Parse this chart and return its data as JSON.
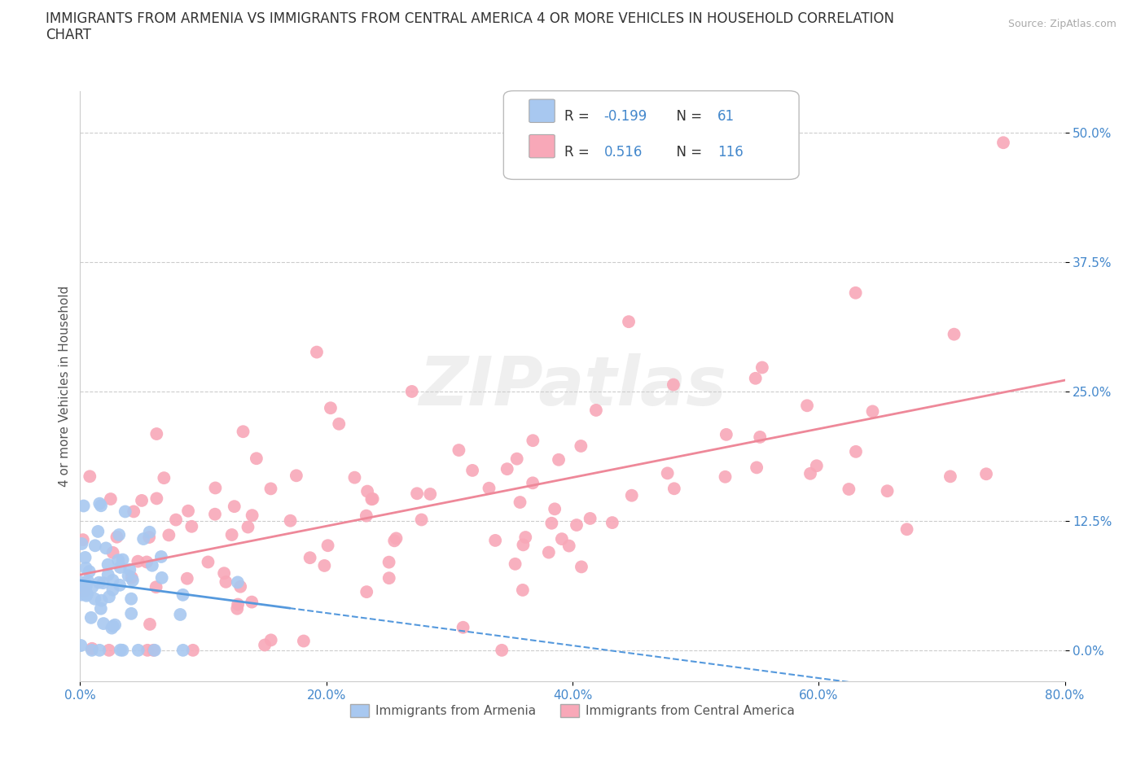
{
  "title_line1": "IMMIGRANTS FROM ARMENIA VS IMMIGRANTS FROM CENTRAL AMERICA 4 OR MORE VEHICLES IN HOUSEHOLD CORRELATION",
  "title_line2": "CHART",
  "source": "Source: ZipAtlas.com",
  "ylabel": "4 or more Vehicles in Household",
  "xlim": [
    0.0,
    0.8
  ],
  "ylim": [
    -0.03,
    0.54
  ],
  "yticks": [
    0.0,
    0.125,
    0.25,
    0.375,
    0.5
  ],
  "ytick_labels": [
    "0.0%",
    "12.5%",
    "25.0%",
    "37.5%",
    "50.0%"
  ],
  "xticks": [
    0.0,
    0.2,
    0.4,
    0.6,
    0.8
  ],
  "xtick_labels": [
    "0.0%",
    "20.0%",
    "40.0%",
    "60.0%",
    "80.0%"
  ],
  "armenia_R": -0.199,
  "armenia_N": 61,
  "central_R": 0.516,
  "central_N": 116,
  "armenia_color": "#a8c8f0",
  "central_color": "#f8a8b8",
  "armenia_line_color": "#5599dd",
  "central_line_color": "#ee8899",
  "grid_color": "#cccccc",
  "watermark": "ZIPatlas",
  "background_color": "#ffffff",
  "title_fontsize": 12,
  "axis_label_fontsize": 11,
  "tick_fontsize": 11,
  "legend_label1": "Immigrants from Armenia",
  "legend_label2": "Immigrants from Central America"
}
